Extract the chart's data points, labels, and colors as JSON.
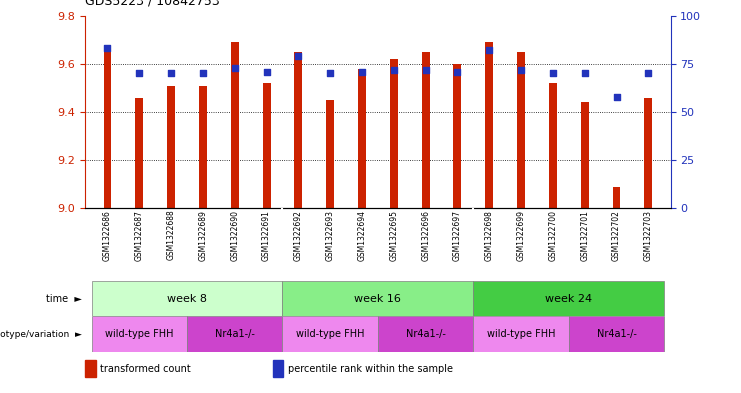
{
  "title": "GDS5223 / 10842753",
  "samples": [
    "GSM1322686",
    "GSM1322687",
    "GSM1322688",
    "GSM1322689",
    "GSM1322690",
    "GSM1322691",
    "GSM1322692",
    "GSM1322693",
    "GSM1322694",
    "GSM1322695",
    "GSM1322696",
    "GSM1322697",
    "GSM1322698",
    "GSM1322699",
    "GSM1322700",
    "GSM1322701",
    "GSM1322702",
    "GSM1322703"
  ],
  "bar_values": [
    9.68,
    9.46,
    9.51,
    9.51,
    9.69,
    9.52,
    9.65,
    9.45,
    9.58,
    9.62,
    9.65,
    9.6,
    9.69,
    9.65,
    9.52,
    9.44,
    9.09,
    9.46
  ],
  "percentile_values": [
    83,
    70,
    70,
    70,
    73,
    71,
    79,
    70,
    71,
    72,
    72,
    71,
    82,
    72,
    70,
    70,
    58,
    70
  ],
  "ylim_left": [
    9.0,
    9.8
  ],
  "ylim_right": [
    0,
    100
  ],
  "yticks_left": [
    9.0,
    9.2,
    9.4,
    9.6,
    9.8
  ],
  "yticks_right": [
    0,
    25,
    50,
    75,
    100
  ],
  "bar_color": "#cc2200",
  "dot_color": "#2233bb",
  "time_groups": [
    {
      "label": "week 8",
      "start": 0,
      "end": 6,
      "color": "#ccffcc"
    },
    {
      "label": "week 16",
      "start": 6,
      "end": 12,
      "color": "#88ee88"
    },
    {
      "label": "week 24",
      "start": 12,
      "end": 18,
      "color": "#44cc44"
    }
  ],
  "genotype_groups": [
    {
      "label": "wild-type FHH",
      "start": 0,
      "end": 3,
      "color": "#ee88ee"
    },
    {
      "label": "Nr4a1-/-",
      "start": 3,
      "end": 6,
      "color": "#cc44cc"
    },
    {
      "label": "wild-type FHH",
      "start": 6,
      "end": 9,
      "color": "#ee88ee"
    },
    {
      "label": "Nr4a1-/-",
      "start": 9,
      "end": 12,
      "color": "#cc44cc"
    },
    {
      "label": "wild-type FHH",
      "start": 12,
      "end": 15,
      "color": "#ee88ee"
    },
    {
      "label": "Nr4a1-/-",
      "start": 15,
      "end": 18,
      "color": "#cc44cc"
    }
  ],
  "legend_items": [
    {
      "label": "transformed count",
      "color": "#cc2200"
    },
    {
      "label": "percentile rank within the sample",
      "color": "#2233bb"
    }
  ],
  "label_bg_color": "#cccccc",
  "bar_width": 0.25
}
